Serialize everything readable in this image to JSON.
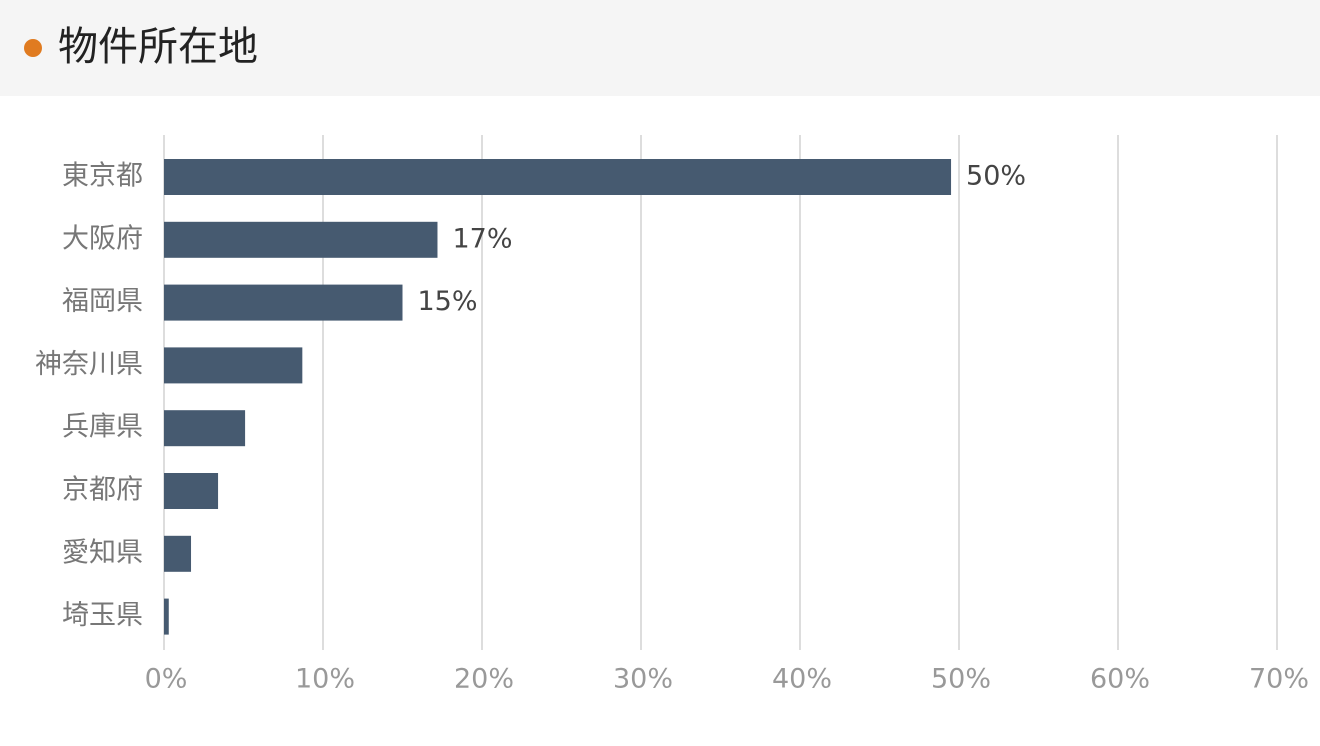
{
  "header": {
    "title": "物件所在地"
  },
  "chart_data": {
    "type": "hbar",
    "categories": [
      "東京都",
      "大阪府",
      "福岡県",
      "神奈川県",
      "兵庫県",
      "京都府",
      "愛知県",
      "埼玉県"
    ],
    "values": [
      49.5,
      17.2,
      15.0,
      8.7,
      5.1,
      3.4,
      1.7,
      0.3
    ],
    "value_labels": [
      "50%",
      "17%",
      "15%",
      null,
      null,
      null,
      null,
      null
    ],
    "color": "#465a70",
    "xlim": [
      0,
      70
    ],
    "xticks": [
      {
        "value": 0,
        "label": "0%"
      },
      {
        "value": 10,
        "label": "10%"
      },
      {
        "value": 20,
        "label": "20%"
      },
      {
        "value": 30,
        "label": "30%"
      },
      {
        "value": 40,
        "label": "40%"
      },
      {
        "value": 50,
        "label": "50%"
      },
      {
        "value": 60,
        "label": "60%"
      },
      {
        "value": 70,
        "label": "70%"
      }
    ],
    "grid": true
  }
}
